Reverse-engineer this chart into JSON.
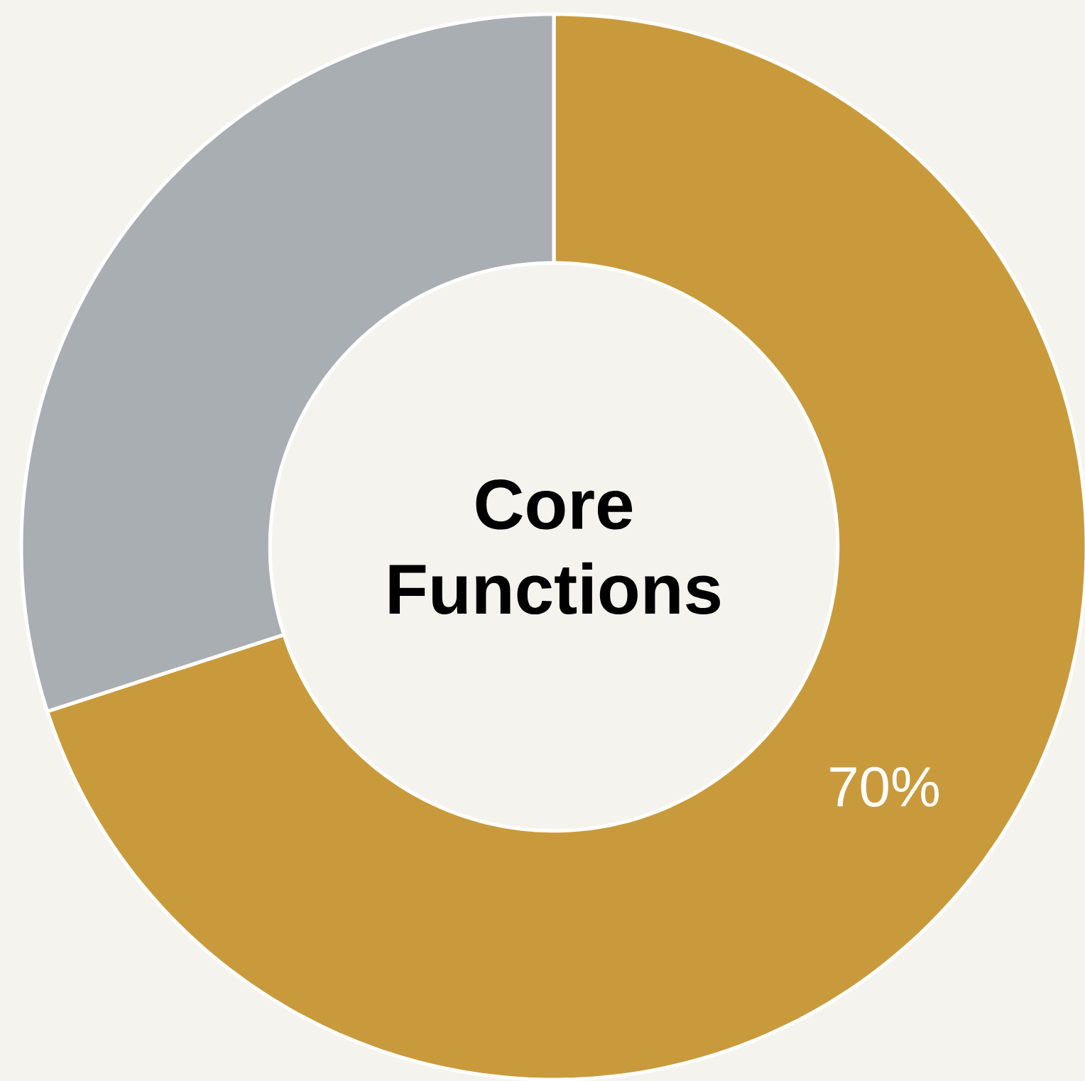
{
  "chart_data": {
    "type": "donut",
    "title": "Core Functions",
    "categories": [
      null,
      null
    ],
    "values": [
      70,
      30
    ],
    "colors": [
      "#c99a3c",
      "#a9aeb3"
    ],
    "value_labels": [
      "70%",
      null
    ]
  }
}
